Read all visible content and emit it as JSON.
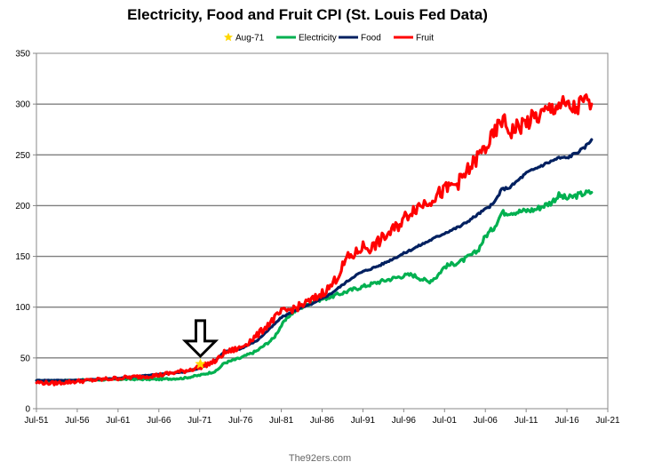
{
  "chart_data": {
    "type": "line",
    "title": "Electricity, Food and Fruit CPI (St. Louis Fed Data)",
    "footer": "The92ers.com",
    "xlabel": "",
    "ylabel": "",
    "ylim": [
      0,
      350
    ],
    "y_ticks": [
      0,
      50,
      100,
      150,
      200,
      250,
      300,
      350
    ],
    "xlim": [
      1951.583,
      2021.583
    ],
    "x_ticks": [
      {
        "label": "Jul-51",
        "year": 1951.583
      },
      {
        "label": "Jul-56",
        "year": 1956.583
      },
      {
        "label": "Jul-61",
        "year": 1961.583
      },
      {
        "label": "Jul-66",
        "year": 1966.583
      },
      {
        "label": "Jul-71",
        "year": 1971.583
      },
      {
        "label": "Jul-76",
        "year": 1976.583
      },
      {
        "label": "Jul-81",
        "year": 1981.583
      },
      {
        "label": "Jul-86",
        "year": 1986.583
      },
      {
        "label": "Jul-91",
        "year": 1991.583
      },
      {
        "label": "Jul-96",
        "year": 1996.583
      },
      {
        "label": "Jul-01",
        "year": 2001.583
      },
      {
        "label": "Jul-06",
        "year": 2006.583
      },
      {
        "label": "Jul-11",
        "year": 2011.583
      },
      {
        "label": "Jul-16",
        "year": 2016.583
      },
      {
        "label": "Jul-21",
        "year": 2021.583
      }
    ],
    "grid": "horizontal",
    "legend": "top-center",
    "annotations": [
      {
        "type": "down-arrow",
        "x": 1971.666,
        "y": 50
      }
    ],
    "marker": {
      "name": "Aug-71",
      "x": 1971.666,
      "y": 44,
      "color": "#ffd700"
    },
    "series": [
      {
        "name": "Electricity",
        "color": "#00b050",
        "x": [
          1951.6,
          1956.6,
          1961.6,
          1966.6,
          1969.6,
          1971.6,
          1973.6,
          1974.6,
          1976.6,
          1978.6,
          1980.6,
          1981.6,
          1982.6,
          1983.6,
          1985.6,
          1987.6,
          1990.6,
          1993.6,
          1995.6,
          1996.6,
          1997.6,
          1999.6,
          2000.6,
          2001.6,
          2003.6,
          2005.6,
          2006.6,
          2007.6,
          2008.6,
          2010.6,
          2012.6,
          2014.6,
          2015.6,
          2016.6,
          2018.6,
          2019.6
        ],
        "y": [
          27,
          28,
          29,
          29,
          30,
          33,
          37,
          45,
          50,
          57,
          69,
          82,
          92,
          98,
          106,
          110,
          118,
          125,
          129,
          131,
          132,
          125,
          130,
          140,
          145,
          155,
          170,
          178,
          193,
          194,
          196,
          203,
          210,
          207,
          212,
          213
        ]
      },
      {
        "name": "Food",
        "color": "#002060",
        "x": [
          1951.6,
          1956.6,
          1961.6,
          1966.6,
          1969.6,
          1971.6,
          1973.6,
          1974.6,
          1976.6,
          1978.6,
          1980.6,
          1981.6,
          1983.6,
          1985.6,
          1987.6,
          1989.6,
          1990.6,
          1991.6,
          1993.6,
          1995.6,
          1997.6,
          1999.6,
          2001.6,
          2003.6,
          2005.6,
          2007.6,
          2008.6,
          2009.6,
          2011.6,
          2013.6,
          2015.6,
          2016.6,
          2018.6,
          2019.6
        ],
        "y": [
          28,
          28,
          30,
          34,
          36,
          40,
          48,
          56,
          59,
          67,
          82,
          90,
          98,
          104,
          113,
          125,
          131,
          135,
          141,
          149,
          157,
          165,
          173,
          180,
          191,
          202,
          216,
          218,
          232,
          240,
          247,
          247,
          256,
          265
        ]
      },
      {
        "name": "Fruit",
        "color": "#ff0000",
        "x": [
          1951.6,
          1953.6,
          1956.6,
          1961.6,
          1966.6,
          1969.6,
          1971.6,
          1973.6,
          1974.6,
          1976.6,
          1978.6,
          1980.6,
          1981.6,
          1983.6,
          1985.6,
          1987.6,
          1988.6,
          1989.6,
          1990.6,
          1991.6,
          1992.6,
          1993.6,
          1995.6,
          1997.6,
          1999.6,
          2001.6,
          2003.6,
          2005.6,
          2007.6,
          2008.6,
          2009.6,
          2011.6,
          2013.6,
          2015.6,
          2016.6,
          2017.6,
          2018.6,
          2019.6
        ],
        "y": [
          26,
          25,
          27,
          30,
          33,
          37,
          41,
          47,
          55,
          60,
          72,
          88,
          95,
          100,
          108,
          120,
          132,
          148,
          152,
          160,
          158,
          165,
          178,
          196,
          205,
          215,
          225,
          247,
          268,
          285,
          273,
          282,
          290,
          300,
          297,
          295,
          302,
          300
        ]
      }
    ]
  }
}
